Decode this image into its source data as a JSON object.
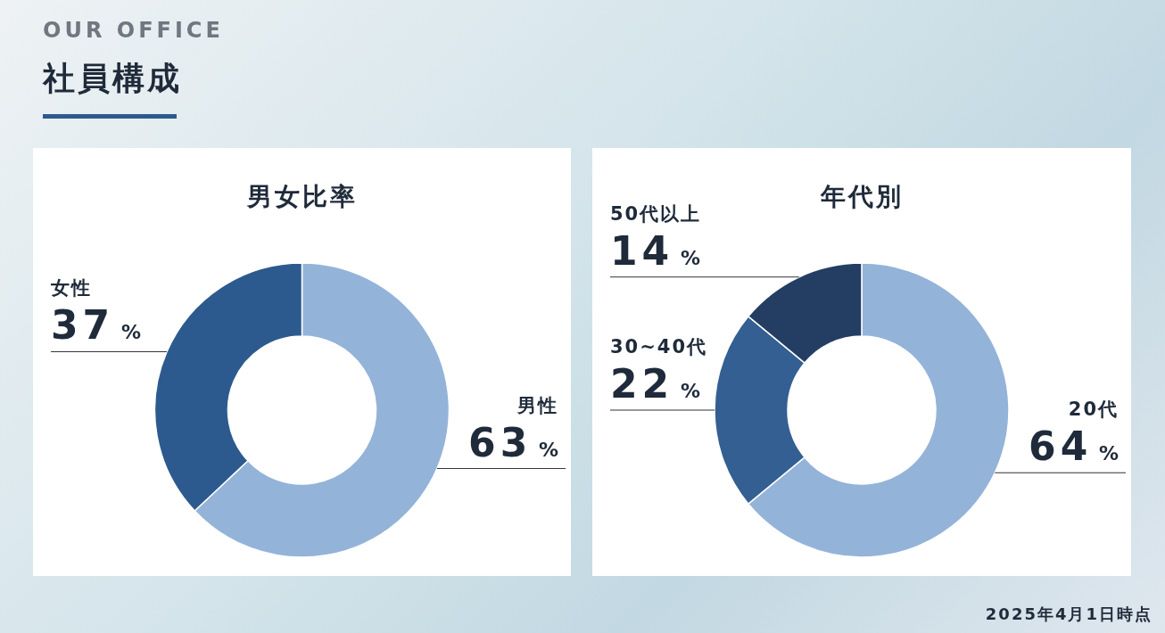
{
  "chart_data": [
    {
      "type": "other",
      "subtitle": "OUR OFFICE",
      "title": "社員構成",
      "annotations": [
        "2025年4月1日時点"
      ]
    },
    {
      "type": "donut",
      "title": "男女比率",
      "categories": [
        "男性",
        "女性"
      ],
      "values": [
        63,
        37
      ],
      "value_labels": [
        "63 %",
        "37 %"
      ],
      "colors": [
        "#94b3d8",
        "#2d5a8e"
      ]
    },
    {
      "type": "donut",
      "title": "年代別",
      "categories": [
        "20代",
        "30~40代",
        "50代以上"
      ],
      "values": [
        64,
        22,
        14
      ],
      "value_labels": [
        "64 %",
        "22 %",
        "14 %"
      ],
      "colors": [
        "#94b3d8",
        "#335f92",
        "#243e63"
      ]
    }
  ]
}
